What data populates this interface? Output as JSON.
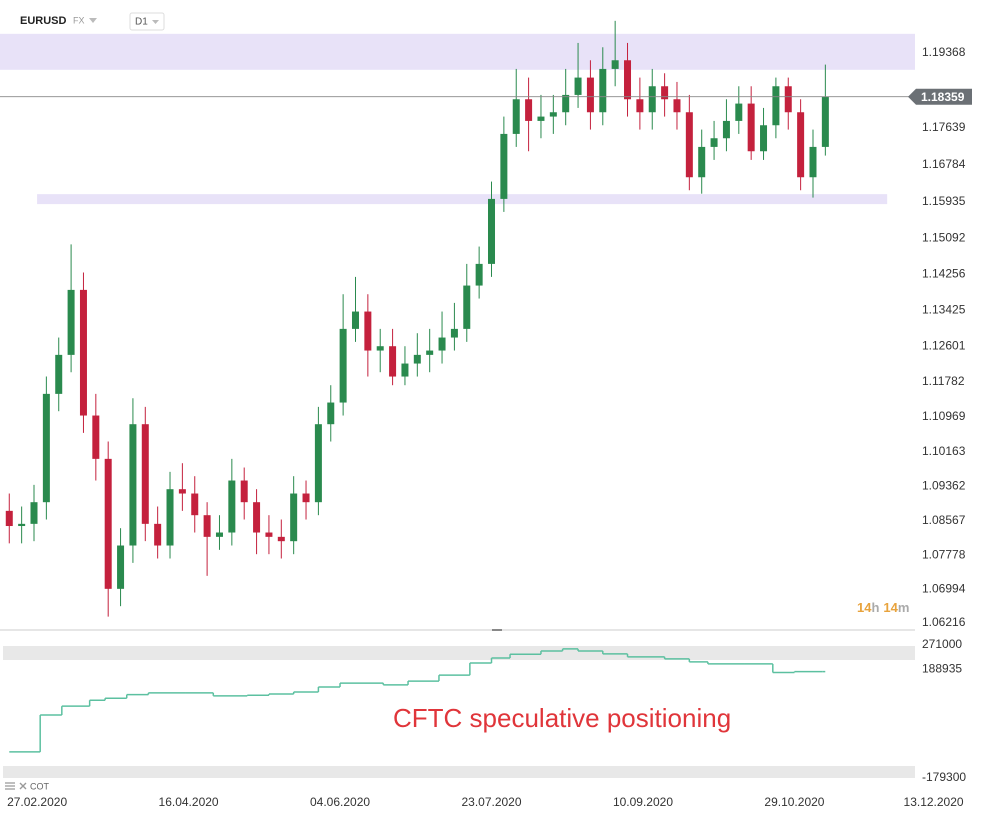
{
  "header": {
    "symbol": "EURUSD",
    "market": "FX",
    "timeframe": "D1"
  },
  "countdown": {
    "hours": 14,
    "hour_unit": "h",
    "minutes": 14,
    "minute_unit": "m"
  },
  "chart_data": [
    {
      "type": "candlestick",
      "x": [
        "18.02.2020",
        "22.02.2020",
        "26.02.2020",
        "01.03.2020",
        "05.03.2020",
        "09.03.2020",
        "13.03.2020",
        "17.03.2020",
        "21.03.2020",
        "25.03.2020",
        "29.03.2020",
        "02.04.2020",
        "06.04.2020",
        "10.04.2020",
        "14.04.2020",
        "18.04.2020",
        "22.04.2020",
        "26.04.2020",
        "30.04.2020",
        "04.05.2020",
        "08.05.2020",
        "12.05.2020",
        "16.05.2020",
        "20.05.2020",
        "24.05.2020",
        "28.05.2020",
        "01.06.2020",
        "05.06.2020",
        "09.06.2020",
        "13.06.2020",
        "17.06.2020",
        "21.06.2020",
        "25.06.2020",
        "29.06.2020",
        "03.07.2020",
        "07.07.2020",
        "11.07.2020",
        "15.07.2020",
        "19.07.2020",
        "23.07.2020",
        "27.07.2020",
        "31.07.2020",
        "04.08.2020",
        "08.08.2020",
        "12.08.2020",
        "16.08.2020",
        "20.08.2020",
        "24.08.2020",
        "28.08.2020",
        "01.09.2020",
        "05.09.2020",
        "09.09.2020",
        "13.09.2020",
        "17.09.2020",
        "21.09.2020",
        "25.09.2020",
        "29.09.2020",
        "03.10.2020",
        "07.10.2020",
        "11.10.2020",
        "15.10.2020",
        "19.10.2020",
        "23.10.2020",
        "27.10.2020",
        "31.10.2020",
        "04.11.2020",
        "08.11.2020"
      ],
      "open": [
        1.088,
        1.0845,
        1.085,
        1.09,
        1.115,
        1.124,
        1.139,
        1.11,
        1.1,
        1.07,
        1.08,
        1.108,
        1.085,
        1.08,
        1.093,
        1.092,
        1.087,
        1.082,
        1.083,
        1.095,
        1.09,
        1.083,
        1.082,
        1.081,
        1.092,
        1.09,
        1.108,
        1.113,
        1.13,
        1.134,
        1.125,
        1.126,
        1.119,
        1.122,
        1.124,
        1.125,
        1.128,
        1.13,
        1.14,
        1.145,
        1.16,
        1.175,
        1.183,
        1.178,
        1.179,
        1.18,
        1.184,
        1.188,
        1.18,
        1.19,
        1.192,
        1.183,
        1.18,
        1.186,
        1.183,
        1.18,
        1.165,
        1.172,
        1.174,
        1.178,
        1.182,
        1.171,
        1.177,
        1.186,
        1.18,
        1.165,
        1.172
      ],
      "high": [
        1.092,
        1.089,
        1.094,
        1.119,
        1.128,
        1.1495,
        1.143,
        1.115,
        1.104,
        1.084,
        1.114,
        1.112,
        1.089,
        1.097,
        1.099,
        1.096,
        1.09,
        1.087,
        1.1,
        1.098,
        1.093,
        1.087,
        1.086,
        1.096,
        1.095,
        1.112,
        1.117,
        1.138,
        1.142,
        1.138,
        1.13,
        1.13,
        1.126,
        1.129,
        1.13,
        1.134,
        1.136,
        1.145,
        1.149,
        1.164,
        1.179,
        1.19,
        1.188,
        1.184,
        1.184,
        1.19,
        1.196,
        1.192,
        1.195,
        1.2011,
        1.196,
        1.188,
        1.19,
        1.189,
        1.187,
        1.184,
        1.176,
        1.178,
        1.183,
        1.186,
        1.186,
        1.181,
        1.188,
        1.188,
        1.183,
        1.176,
        1.191
      ],
      "low": [
        1.0805,
        1.0805,
        1.081,
        1.086,
        1.111,
        1.12,
        1.106,
        1.095,
        1.0636,
        1.066,
        1.076,
        1.081,
        1.077,
        1.077,
        1.088,
        1.083,
        1.073,
        1.079,
        1.08,
        1.086,
        1.078,
        1.078,
        1.077,
        1.078,
        1.086,
        1.087,
        1.104,
        1.11,
        1.127,
        1.119,
        1.12,
        1.117,
        1.117,
        1.119,
        1.12,
        1.122,
        1.125,
        1.127,
        1.137,
        1.142,
        1.157,
        1.172,
        1.171,
        1.174,
        1.175,
        1.177,
        1.181,
        1.176,
        1.177,
        1.186,
        1.179,
        1.176,
        1.176,
        1.179,
        1.176,
        1.162,
        1.1612,
        1.169,
        1.171,
        1.175,
        1.169,
        1.169,
        1.174,
        1.176,
        1.162,
        1.1603,
        1.17
      ],
      "close": [
        1.0845,
        1.085,
        1.09,
        1.115,
        1.124,
        1.139,
        1.11,
        1.1,
        1.07,
        1.08,
        1.108,
        1.085,
        1.08,
        1.093,
        1.092,
        1.087,
        1.082,
        1.083,
        1.095,
        1.09,
        1.083,
        1.082,
        1.081,
        1.092,
        1.09,
        1.108,
        1.113,
        1.13,
        1.134,
        1.125,
        1.126,
        1.119,
        1.122,
        1.124,
        1.125,
        1.128,
        1.13,
        1.14,
        1.145,
        1.16,
        1.175,
        1.183,
        1.178,
        1.179,
        1.18,
        1.184,
        1.188,
        1.18,
        1.19,
        1.192,
        1.183,
        1.18,
        1.186,
        1.183,
        1.18,
        1.165,
        1.172,
        1.174,
        1.178,
        1.182,
        1.171,
        1.177,
        1.186,
        1.18,
        1.165,
        1.172,
        1.1836
      ],
      "up_color": "#2a8a4e",
      "down_color": "#c4213d",
      "xlim": [
        "15.02.2020",
        "07.12.2020"
      ],
      "xticks": [
        "27.02.2020",
        "16.04.2020",
        "04.06.2020",
        "23.07.2020",
        "10.09.2020",
        "29.10.2020",
        "13.12.2020"
      ],
      "ylim": [
        1.0605,
        1.2036
      ],
      "yticks": [
        1.19368,
        1.17639,
        1.16784,
        1.15935,
        1.15092,
        1.14256,
        1.13425,
        1.12601,
        1.11782,
        1.10969,
        1.10163,
        1.09362,
        1.08567,
        1.07778,
        1.06994,
        1.06216
      ],
      "zones": [
        {
          "from": "15.02.2020",
          "to": "07.12.2020",
          "low": 1.1898,
          "high": 1.1981,
          "color": "#e8e2f8"
        },
        {
          "from": "27.02.2020",
          "to": "28.11.2020",
          "low": 1.1588,
          "high": 1.1611,
          "color": "#e8e2f8"
        }
      ],
      "last_price": 1.18359
    },
    {
      "type": "line",
      "indicator": "COT",
      "annotation": "CFTC speculative positioning",
      "color": "#5cc0a0",
      "x": [
        "18.02.2020",
        "28.02.2020",
        "06.03.2020",
        "15.03.2020",
        "20.03.2020",
        "27.03.2020",
        "03.04.2020",
        "15.04.2020",
        "24.04.2020",
        "05.05.2020",
        "12.05.2020",
        "20.05.2020",
        "28.05.2020",
        "04.06.2020",
        "18.06.2020",
        "26.06.2020",
        "06.07.2020",
        "16.07.2020",
        "23.07.2020",
        "29.07.2020",
        "08.08.2020",
        "15.08.2020",
        "20.08.2020",
        "28.08.2020",
        "05.09.2020",
        "17.09.2020",
        "25.09.2020",
        "01.10.2020",
        "13.10.2020",
        "22.10.2020",
        "29.10.2020",
        "07.11.2020"
      ],
      "values": [
        -91000,
        34000,
        64000,
        84000,
        91000,
        103000,
        109000,
        109000,
        99000,
        101000,
        105000,
        112000,
        129000,
        142000,
        136000,
        149000,
        169000,
        210000,
        227000,
        240000,
        251000,
        258000,
        251000,
        241000,
        231000,
        224000,
        214000,
        207000,
        207000,
        178000,
        181000,
        181000
      ],
      "ylim": [
        -203000,
        305000
      ],
      "yticks": [
        271000,
        188935,
        -179300
      ]
    }
  ]
}
